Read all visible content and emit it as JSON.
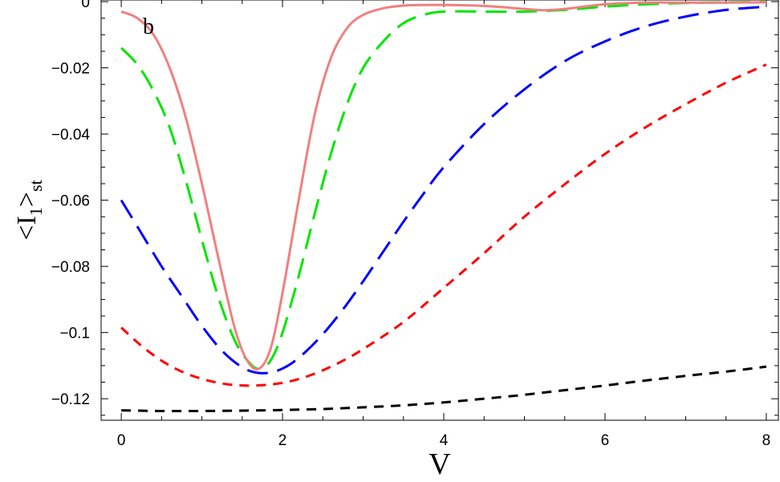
{
  "chart_data": {
    "type": "line",
    "panel_label": "b",
    "xlabel": "V",
    "ylabel": "<I1>st",
    "ylabel_main": "<I",
    "ylabel_sub1": "1",
    "ylabel_close": ">",
    "ylabel_sub2": "st",
    "xlim": [
      -0.25,
      8.15
    ],
    "ylim": [
      -0.1265,
      0.0005
    ],
    "xticks": [
      0,
      2,
      4,
      6,
      8
    ],
    "xtick_labels": [
      "0",
      "2",
      "4",
      "6",
      "8"
    ],
    "yticks": [
      0,
      -0.02,
      -0.04,
      -0.06,
      -0.08,
      -0.1,
      -0.12
    ],
    "ytick_labels": [
      "0",
      "−0.02",
      "−0.04",
      "−0.06",
      "−0.08",
      "−0.1",
      "−0.12"
    ],
    "grid": false,
    "legend": "none",
    "series": [
      {
        "color": "#000000",
        "style": "short-dash",
        "x": [
          0,
          0.5,
          1.0,
          1.5,
          2.0,
          2.5,
          3.0,
          3.5,
          4.0,
          4.5,
          5.0,
          5.5,
          6.0,
          6.5,
          7.0,
          7.5,
          8.0
        ],
        "y": [
          -0.1235,
          -0.1237,
          -0.1237,
          -0.1236,
          -0.1234,
          -0.1231,
          -0.1226,
          -0.122,
          -0.1211,
          -0.12,
          -0.1188,
          -0.1174,
          -0.116,
          -0.1145,
          -0.1131,
          -0.1118,
          -0.1103
        ]
      },
      {
        "color": "#ff0000",
        "style": "short-dash",
        "x": [
          0,
          0.25,
          0.5,
          0.75,
          1.0,
          1.25,
          1.5,
          1.75,
          2.0,
          2.25,
          2.5,
          2.75,
          3.0,
          3.5,
          4.0,
          4.5,
          5.0,
          5.5,
          6.0,
          6.5,
          7.0,
          7.5,
          8.0
        ],
        "y": [
          -0.0985,
          -0.104,
          -0.1085,
          -0.1118,
          -0.114,
          -0.1154,
          -0.116,
          -0.1159,
          -0.1152,
          -0.1137,
          -0.1114,
          -0.1085,
          -0.105,
          -0.0968,
          -0.0865,
          -0.076,
          -0.065,
          -0.0552,
          -0.046,
          -0.038,
          -0.031,
          -0.0245,
          -0.019
        ]
      },
      {
        "color": "#0000ff",
        "style": "long-dash",
        "x": [
          0,
          0.25,
          0.5,
          0.75,
          1.0,
          1.25,
          1.5,
          1.7,
          1.9,
          2.1,
          2.3,
          2.5,
          2.75,
          3.0,
          3.25,
          3.5,
          3.75,
          4.0,
          4.5,
          5.0,
          5.5,
          6.0,
          6.5,
          7.0,
          7.5,
          8.0
        ],
        "y": [
          -0.06,
          -0.07,
          -0.08,
          -0.089,
          -0.098,
          -0.1055,
          -0.1105,
          -0.1122,
          -0.1118,
          -0.1095,
          -0.1055,
          -0.1005,
          -0.093,
          -0.0845,
          -0.0755,
          -0.0665,
          -0.058,
          -0.05,
          -0.037,
          -0.0265,
          -0.018,
          -0.012,
          -0.0075,
          -0.0045,
          -0.0025,
          -0.0015
        ]
      },
      {
        "color": "#00e600",
        "style": "long-dash",
        "x": [
          0,
          0.2,
          0.4,
          0.6,
          0.8,
          1.0,
          1.2,
          1.4,
          1.55,
          1.7,
          1.85,
          2.0,
          2.2,
          2.4,
          2.6,
          2.8,
          3.0,
          3.25,
          3.5,
          3.75,
          4.0,
          4.5,
          5.0,
          5.5,
          6.0,
          6.5,
          7.0,
          7.5,
          8.0
        ],
        "y": [
          -0.014,
          -0.019,
          -0.027,
          -0.038,
          -0.054,
          -0.072,
          -0.089,
          -0.102,
          -0.108,
          -0.111,
          -0.1085,
          -0.1,
          -0.083,
          -0.064,
          -0.046,
          -0.031,
          -0.02,
          -0.012,
          -0.0065,
          -0.004,
          -0.003,
          -0.003,
          -0.003,
          -0.0025,
          -0.0015,
          -0.0008,
          -0.0004,
          -0.0002,
          -0.0001
        ]
      },
      {
        "color": "#f08080",
        "style": "solid",
        "x": [
          0,
          0.2,
          0.4,
          0.6,
          0.8,
          1.0,
          1.2,
          1.4,
          1.55,
          1.7,
          1.85,
          2.0,
          2.2,
          2.4,
          2.6,
          2.8,
          3.0,
          3.25,
          3.5,
          3.75,
          4.0,
          4.5,
          5.0,
          5.25,
          5.5,
          6.0,
          6.5,
          7.0,
          7.5,
          8.0
        ],
        "y": [
          -0.003,
          -0.005,
          -0.01,
          -0.02,
          -0.035,
          -0.055,
          -0.077,
          -0.098,
          -0.108,
          -0.111,
          -0.105,
          -0.088,
          -0.06,
          -0.034,
          -0.017,
          -0.008,
          -0.004,
          -0.002,
          -0.0012,
          -0.001,
          -0.001,
          -0.0013,
          -0.0022,
          -0.0026,
          -0.0022,
          -0.0008,
          -0.0003,
          -0.0003,
          -0.0003,
          -0.0002
        ]
      }
    ]
  }
}
